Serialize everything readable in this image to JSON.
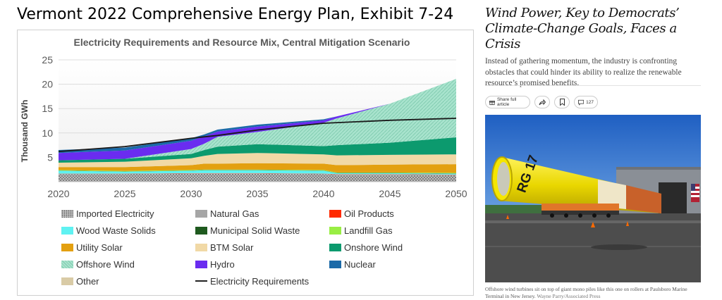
{
  "heading": "Vermont 2022 Comprehensive Energy Plan, Exhibit 7-24",
  "chart_data": {
    "type": "area",
    "title": "Electricity Requirements and Resource Mix, Central Mitigation Scenario",
    "ylabel": "Thousand GWh",
    "xlabel": "",
    "xlim": [
      2020,
      2050
    ],
    "ylim": [
      0,
      25
    ],
    "x_ticks": [
      "2020",
      "2025",
      "2030",
      "2035",
      "2040",
      "2045",
      "2050"
    ],
    "y_ticks": [
      "5",
      "10",
      "15",
      "20",
      "25"
    ],
    "grid": true,
    "legend_position": "bottom",
    "x": [
      2020,
      2025,
      2030,
      2031,
      2032,
      2035,
      2040,
      2041,
      2045,
      2050
    ],
    "series": [
      {
        "name": "Imported Electricity",
        "color": "#8c8c8c",
        "pattern": "dots",
        "values": [
          1.5,
          1.5,
          1.6,
          1.6,
          1.6,
          1.6,
          1.5,
          1.4,
          1.4,
          1.3
        ]
      },
      {
        "name": "Natural Gas",
        "color": "#a6a6a6",
        "values": [
          0.1,
          0.1,
          0.1,
          0.1,
          0.1,
          0.1,
          0.1,
          0.1,
          0.1,
          0.1
        ]
      },
      {
        "name": "Oil Products",
        "color": "#ff2a00",
        "values": [
          0.05,
          0.05,
          0.05,
          0.05,
          0.05,
          0.05,
          0.05,
          0.05,
          0.05,
          0.05
        ]
      },
      {
        "name": "Wood Waste Solids",
        "color": "#5ff2f2",
        "values": [
          0.6,
          0.4,
          0.5,
          0.6,
          0.6,
          0.6,
          0.6,
          0.2,
          0.2,
          0.2
        ]
      },
      {
        "name": "Municipal Solid Waste",
        "color": "#1f5a1f",
        "values": [
          0.05,
          0.05,
          0.05,
          0.05,
          0.05,
          0.05,
          0.05,
          0.05,
          0.05,
          0.05
        ]
      },
      {
        "name": "Landfill Gas",
        "color": "#99ee44",
        "values": [
          0.1,
          0.1,
          0.1,
          0.1,
          0.1,
          0.1,
          0.1,
          0.1,
          0.1,
          0.1
        ]
      },
      {
        "name": "Utility Solar",
        "color": "#e3a010",
        "values": [
          0.6,
          0.8,
          1.0,
          1.2,
          1.2,
          1.3,
          1.3,
          1.5,
          1.6,
          1.8
        ]
      },
      {
        "name": "BTM Solar",
        "color": "#f1d9a6",
        "values": [
          0.9,
          1.1,
          1.4,
          1.6,
          2.0,
          2.1,
          1.9,
          2.0,
          2.0,
          2.0
        ]
      },
      {
        "name": "Onshore Wind",
        "color": "#0c9a6e",
        "values": [
          0.5,
          0.6,
          0.9,
          1.2,
          1.5,
          1.8,
          1.7,
          2.1,
          2.5,
          3.5
        ]
      },
      {
        "name": "Offshore Wind",
        "color": "#98dcc4",
        "pattern": "hatch",
        "values": [
          0.0,
          0.0,
          1.0,
          1.3,
          2.0,
          2.5,
          4.8,
          5.5,
          8.0,
          12.0
        ]
      },
      {
        "name": "Hydro",
        "color": "#6a2cf0",
        "values": [
          1.5,
          1.7,
          1.7,
          1.5,
          1.1,
          1.1,
          0.5,
          0.4,
          0.0,
          0.0
        ]
      },
      {
        "name": "Nuclear",
        "color": "#1b6aa8",
        "values": [
          0.6,
          0.6,
          0.5,
          0.4,
          0.4,
          0.4,
          0.2,
          0.0,
          0.0,
          0.0
        ]
      },
      {
        "name": "Other",
        "color": "#d9cba6",
        "values": [
          0.0,
          0.0,
          0.0,
          0.0,
          0.0,
          0.0,
          0.0,
          0.0,
          0.0,
          0.0
        ]
      }
    ],
    "line_series": {
      "name": "Electricity Requirements",
      "color": "#1a1a1a",
      "x": [
        2020,
        2025,
        2030,
        2031,
        2032,
        2035,
        2040,
        2045,
        2050
      ],
      "values": [
        6.2,
        7.2,
        8.9,
        9.2,
        9.5,
        10.6,
        12.0,
        12.6,
        13.0
      ]
    }
  },
  "article": {
    "headline": "Wind Power, Key to Democrats’ Climate-Change Goals, Faces a Crisis",
    "summary": "Instead of gathering momentum, the industry is confronting obstacles that could hinder its ability to realize the renewable resource’s promised benefits.",
    "share_label": "Share full article",
    "comments_count": "127",
    "photo_text": "RG 17",
    "caption": "Offshore wind turbines sit on top of giant mono piles like this one on rollers at Paulsboro Marine Terminal in New Jersey.",
    "credit": "Wayne Parry/Associated Press"
  }
}
